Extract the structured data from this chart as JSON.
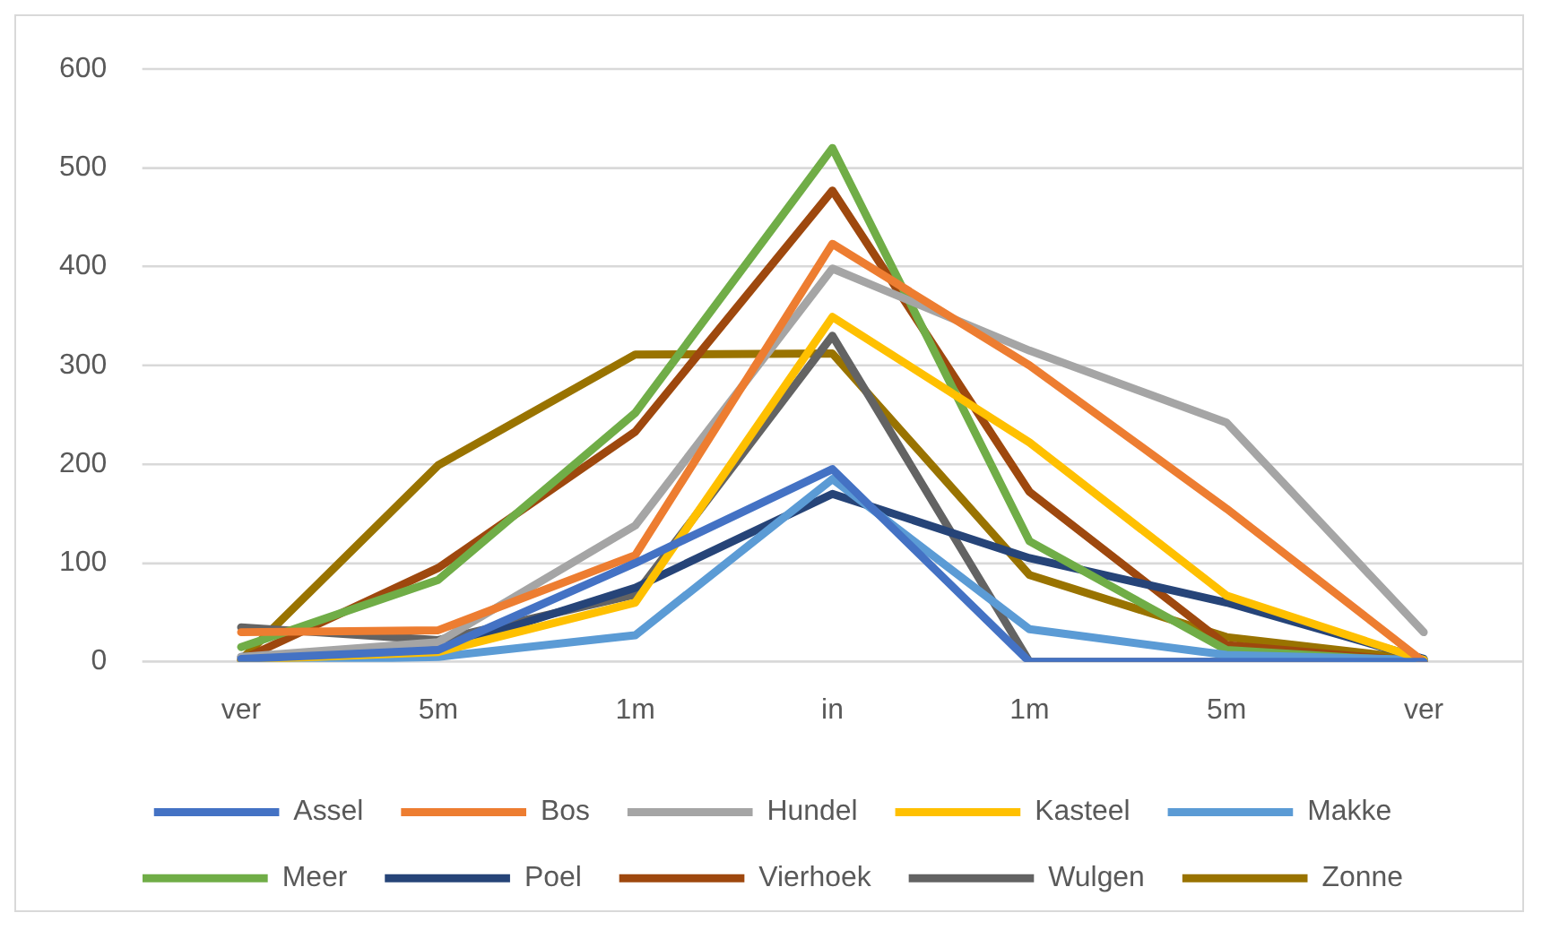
{
  "chart_data": {
    "type": "line",
    "categories": [
      "ver",
      "5m",
      "1m",
      "in",
      "1m",
      "5m",
      "ver"
    ],
    "series": [
      {
        "name": "Assel",
        "color": "#4472c4",
        "values": [
          3,
          12,
          100,
          195,
          0,
          0,
          0
        ]
      },
      {
        "name": "Bos",
        "color": "#ed7d31",
        "values": [
          30,
          32,
          108,
          423,
          300,
          155,
          0
        ]
      },
      {
        "name": "Hundel",
        "color": "#a5a5a5",
        "values": [
          5,
          20,
          138,
          398,
          315,
          242,
          30
        ]
      },
      {
        "name": "Kasteel",
        "color": "#ffc000",
        "values": [
          2,
          10,
          60,
          349,
          222,
          67,
          2
        ]
      },
      {
        "name": "Makke",
        "color": "#5b9bd5",
        "values": [
          0,
          5,
          27,
          185,
          33,
          7,
          2
        ]
      },
      {
        "name": "Meer",
        "color": "#70ad47",
        "values": [
          15,
          83,
          252,
          520,
          122,
          12,
          0
        ]
      },
      {
        "name": "Poel",
        "color": "#264478",
        "values": [
          5,
          12,
          75,
          170,
          105,
          60,
          3
        ]
      },
      {
        "name": "Vierhoek",
        "color": "#9e480e",
        "values": [
          2,
          95,
          233,
          477,
          172,
          17,
          0
        ]
      },
      {
        "name": "Wulgen",
        "color": "#636363",
        "values": [
          35,
          22,
          68,
          330,
          0,
          0,
          0
        ]
      },
      {
        "name": "Zonne",
        "color": "#997300",
        "values": [
          2,
          199,
          311,
          312,
          88,
          25,
          2
        ]
      }
    ],
    "ylim": [
      0,
      600
    ],
    "yticks": [
      0,
      100,
      200,
      300,
      400,
      500,
      600
    ],
    "grid": "y",
    "legend": "bottom"
  }
}
